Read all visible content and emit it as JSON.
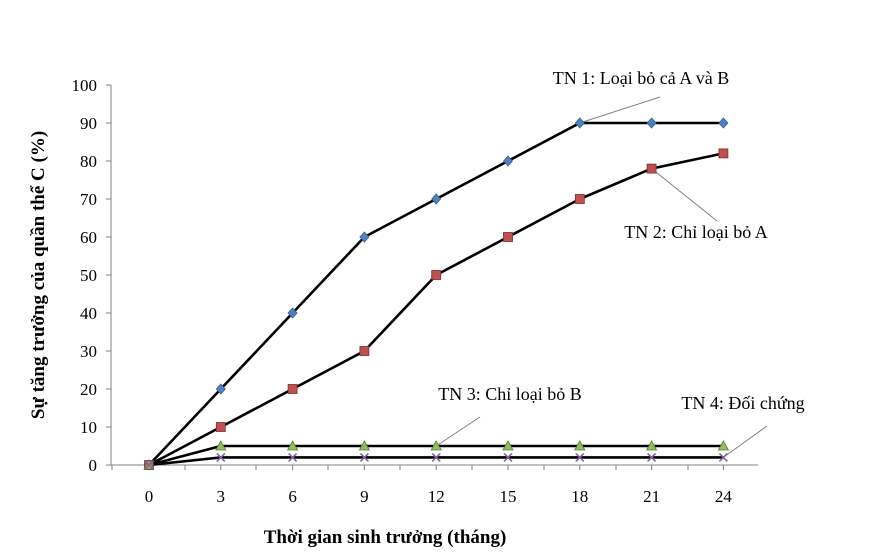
{
  "chart_data": {
    "type": "line",
    "title": "",
    "xlabel": "Thời gian sinh trưởng (tháng)",
    "ylabel": "Sự tăng trưởng của quần thể C (%)",
    "x": [
      0,
      3,
      6,
      9,
      12,
      15,
      18,
      21,
      24
    ],
    "xticks": [
      "0",
      "3",
      "6",
      "9",
      "12",
      "15",
      "18",
      "21",
      "24"
    ],
    "yticks": [
      "0",
      "10",
      "20",
      "30",
      "40",
      "50",
      "60",
      "70",
      "80",
      "90",
      "100"
    ],
    "ylim": [
      0,
      100
    ],
    "grid": false,
    "series": [
      {
        "name": "TN 1: Loại bỏ cả A và B",
        "marker": "diamond",
        "marker_color": "#4F81BD",
        "values": [
          0,
          20,
          40,
          60,
          70,
          80,
          90,
          90,
          90
        ]
      },
      {
        "name": "TN 2: Chỉ loại bỏ A",
        "marker": "square",
        "marker_color": "#C0504D",
        "values": [
          0,
          10,
          20,
          30,
          50,
          60,
          70,
          78,
          82
        ]
      },
      {
        "name": "TN 3: Chỉ loại bỏ B",
        "marker": "triangle",
        "marker_color": "#9BBB59",
        "values": [
          0,
          5,
          5,
          5,
          5,
          5,
          5,
          5,
          5
        ]
      },
      {
        "name": "TN 4: Đối chứng",
        "marker": "x",
        "marker_color": "#8064A2",
        "values": [
          0,
          2,
          2,
          2,
          2,
          2,
          2,
          2,
          2
        ]
      }
    ],
    "annotations": [
      {
        "text": "TN 1: Loại bỏ cả A và B",
        "series": 0,
        "point_index": 6
      },
      {
        "text": "TN 2: Chỉ loại bỏ A",
        "series": 1,
        "point_index": 7
      },
      {
        "text": "TN 3: Chỉ loại bỏ B",
        "series": 2,
        "point_index": 4
      },
      {
        "text": "TN 4: Đối chứng",
        "series": 3,
        "point_index": 8
      }
    ],
    "line_color": "#000000",
    "leader_color": "#808080"
  }
}
